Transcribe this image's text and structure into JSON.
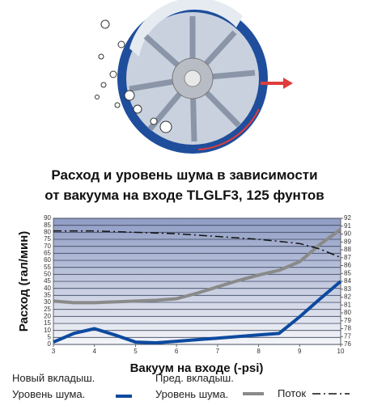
{
  "chart_data": {
    "type": "line",
    "title": "Расход и уровень шума в зависимости\nот вакуума на входе TLGLF3, 125 фунтов",
    "xlabel": "Вакуум на входе (-psi)",
    "ylabel": "Расход (гал/мин)",
    "x": [
      3,
      3.5,
      4,
      4.5,
      5,
      5.5,
      6,
      6.5,
      7,
      7.5,
      8,
      8.5,
      9,
      9.5,
      10
    ],
    "xlim": [
      3,
      10
    ],
    "xticks": [
      3,
      4,
      5,
      6,
      7,
      8,
      9,
      10
    ],
    "ylim": [
      0,
      90
    ],
    "yticks": [
      0,
      5,
      10,
      15,
      20,
      25,
      30,
      35,
      40,
      45,
      50,
      55,
      60,
      65,
      70,
      75,
      80,
      85,
      90
    ],
    "y2lim": [
      76,
      92
    ],
    "y2ticks": [
      76,
      77,
      78,
      79,
      80,
      81,
      82,
      83,
      84,
      85,
      86,
      87,
      88,
      89,
      90,
      91,
      92
    ],
    "grid": true,
    "series": [
      {
        "name": "Новый вкладыш.\nУровень шума.",
        "color": "#0d4aa0",
        "axis": "y2",
        "style": "solid",
        "values": [
          76.3,
          77.4,
          78,
          77.2,
          76.3,
          76.2,
          76.4,
          76.6,
          76.8,
          77,
          77.2,
          77.4,
          79.5,
          81.8,
          84
        ]
      },
      {
        "name": "Пред. вкладыш.\nУровень шума.",
        "color": "#8a8a8a",
        "axis": "y2",
        "style": "solid",
        "values": [
          81.5,
          81.3,
          81.3,
          81.4,
          81.5,
          81.6,
          81.8,
          82.5,
          83.3,
          84.1,
          84.8,
          85.4,
          86.5,
          88.7,
          90.6
        ]
      },
      {
        "name": "Поток",
        "color": "#111111",
        "axis": "y",
        "style": "dashdot",
        "values": [
          81,
          81,
          81,
          80.5,
          80,
          79.5,
          79,
          78,
          77,
          76,
          75,
          73.5,
          72,
          68,
          62
        ]
      }
    ]
  }
}
